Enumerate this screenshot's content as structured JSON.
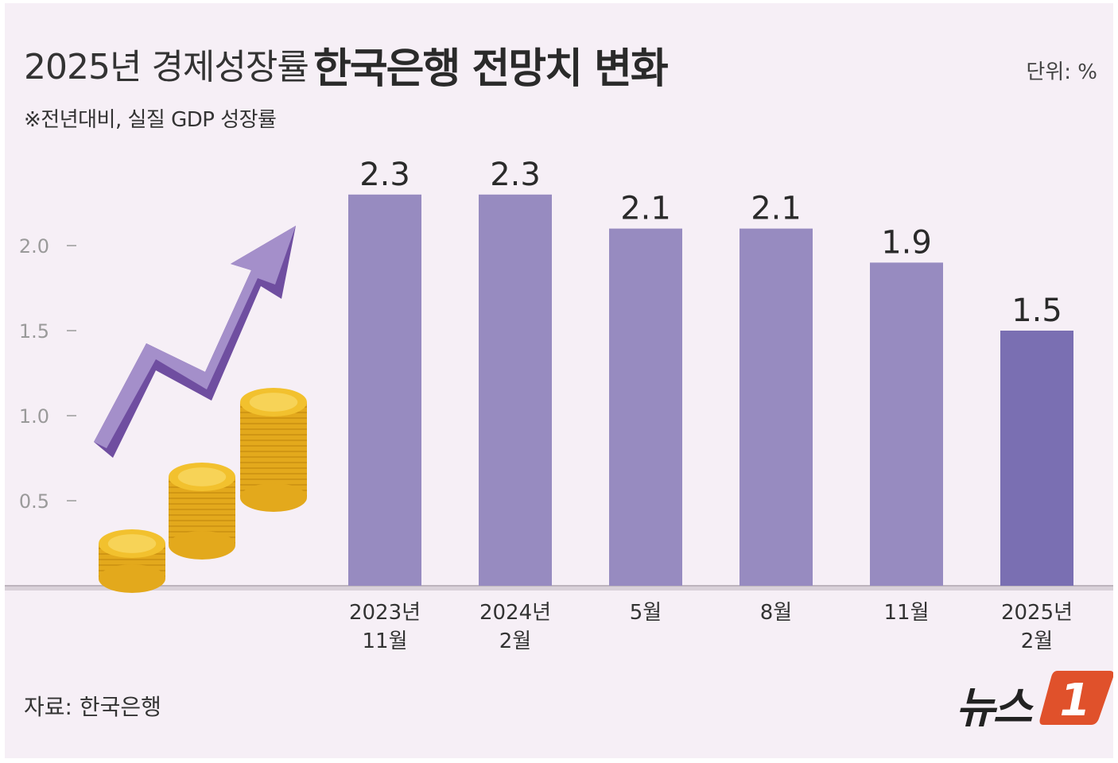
{
  "header": {
    "title_prefix": "2025년 경제성장률",
    "title_main": "한국은행 전망치 변화",
    "unit": "단위: %",
    "subtitle": "※전년대비, 실질 GDP 성장률"
  },
  "footer": {
    "source": "자료: 한국은행",
    "logo_text": "뉴스",
    "logo_mark": "1"
  },
  "colors": {
    "bar": "#978bc0",
    "bar_highlight": "#7a6fb2",
    "background": "#f6eff6",
    "arrow_light": "#a48fca",
    "arrow_dark": "#6f4ea0",
    "coin": "#f2c12e",
    "logo_accent": "#e0512b"
  },
  "chart_data": {
    "type": "bar",
    "title": "2025년 경제성장률 한국은행 전망치 변화",
    "ylabel": "단위: %",
    "ylim": [
      0,
      2.5
    ],
    "yticks": [
      "2.0",
      "1.5",
      "1.0",
      "0.5"
    ],
    "ytick_values": [
      2.0,
      1.5,
      1.0,
      0.5
    ],
    "categories": [
      [
        "2023년",
        "11월"
      ],
      [
        "2024년",
        "2월"
      ],
      [
        "5월"
      ],
      [
        "8월"
      ],
      [
        "11월"
      ],
      [
        "2025년",
        "2월"
      ]
    ],
    "values": [
      2.3,
      2.3,
      2.1,
      2.1,
      1.9,
      1.5
    ],
    "value_labels": [
      "2.3",
      "2.3",
      "2.1",
      "2.1",
      "1.9",
      "1.5"
    ],
    "highlight_index": 5
  }
}
